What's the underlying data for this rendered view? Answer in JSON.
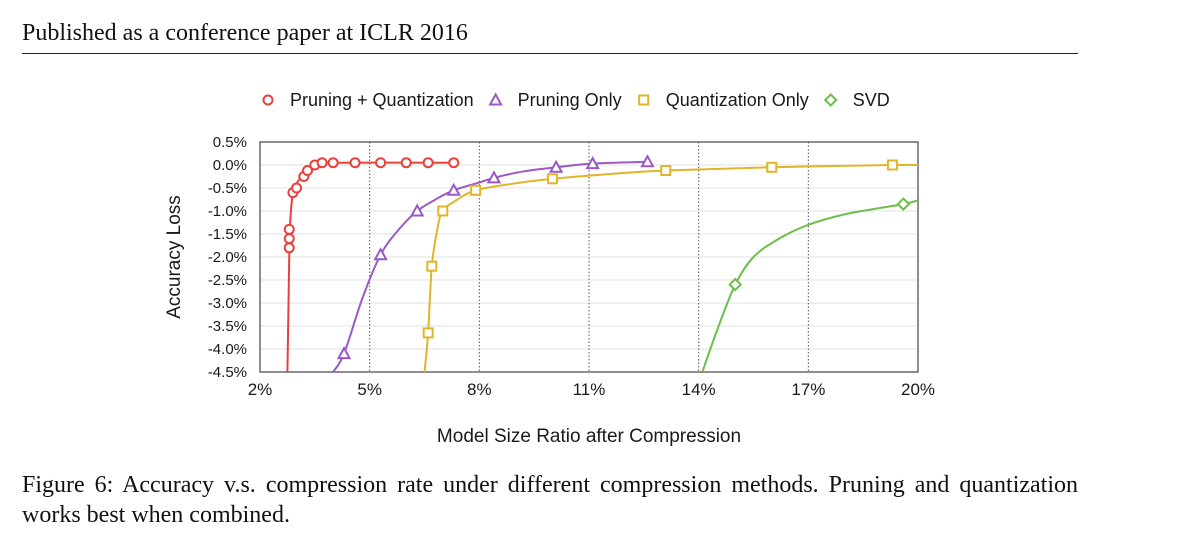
{
  "header": {
    "text": "Published as a conference paper at ICLR 2016"
  },
  "caption": {
    "label": "Figure 6:",
    "text": "Accuracy v.s. compression rate under different compression methods. Pruning and quantization works best when combined."
  },
  "colors": {
    "pruning_quantization": "#e8413c",
    "pruning_only": "#9b59c4",
    "quantization_only": "#e0b52a",
    "svd": "#6cbf4a"
  },
  "chart_data": {
    "type": "line",
    "title": "",
    "xlabel": "Model Size Ratio after Compression",
    "ylabel": "Accuracy Loss",
    "xlim": [
      2,
      20
    ],
    "ylim": [
      -4.5,
      0.5
    ],
    "xticks": [
      "2%",
      "5%",
      "8%",
      "11%",
      "14%",
      "17%",
      "20%"
    ],
    "yticks": [
      "0.5%",
      "0.0%",
      "-0.5%",
      "-1.0%",
      "-1.5%",
      "-2.0%",
      "-2.5%",
      "-3.0%",
      "-3.5%",
      "-4.0%",
      "-4.5%"
    ],
    "legend_position": "top",
    "series": [
      {
        "name": "Pruning + Quantization",
        "marker": "circle",
        "color": "#e8413c",
        "points": [
          [
            2.8,
            -1.8
          ],
          [
            2.8,
            -1.6
          ],
          [
            2.8,
            -1.4
          ],
          [
            2.9,
            -0.6
          ],
          [
            3.0,
            -0.5
          ],
          [
            3.2,
            -0.25
          ],
          [
            3.3,
            -0.12
          ],
          [
            3.5,
            0.0
          ],
          [
            3.7,
            0.05
          ],
          [
            4.0,
            0.05
          ],
          [
            4.6,
            0.05
          ],
          [
            5.3,
            0.05
          ],
          [
            6.0,
            0.05
          ],
          [
            6.6,
            0.05
          ],
          [
            7.3,
            0.05
          ]
        ],
        "curve": [
          [
            2.75,
            -4.5
          ],
          [
            2.78,
            -3.0
          ],
          [
            2.8,
            -2.0
          ],
          [
            2.83,
            -1.2
          ],
          [
            2.9,
            -0.6
          ],
          [
            3.0,
            -0.4
          ],
          [
            3.2,
            -0.2
          ],
          [
            3.5,
            -0.02
          ],
          [
            3.8,
            0.04
          ],
          [
            4.3,
            0.05
          ],
          [
            7.3,
            0.05
          ]
        ]
      },
      {
        "name": "Pruning Only",
        "marker": "triangle",
        "color": "#9b59c4",
        "points": [
          [
            4.3,
            -4.1
          ],
          [
            5.3,
            -1.95
          ],
          [
            6.3,
            -1.0
          ],
          [
            7.3,
            -0.55
          ],
          [
            8.4,
            -0.28
          ],
          [
            10.1,
            -0.05
          ],
          [
            11.1,
            0.03
          ],
          [
            12.6,
            0.07
          ]
        ],
        "curve": [
          [
            4.0,
            -4.5
          ],
          [
            4.3,
            -4.1
          ],
          [
            4.8,
            -2.9
          ],
          [
            5.3,
            -1.95
          ],
          [
            5.8,
            -1.4
          ],
          [
            6.3,
            -1.0
          ],
          [
            6.8,
            -0.75
          ],
          [
            7.3,
            -0.55
          ],
          [
            8.0,
            -0.38
          ],
          [
            8.4,
            -0.28
          ],
          [
            9.2,
            -0.14
          ],
          [
            10.1,
            -0.05
          ],
          [
            11.1,
            0.03
          ],
          [
            12.6,
            0.07
          ]
        ]
      },
      {
        "name": "Quantization Only",
        "marker": "square",
        "color": "#e0b52a",
        "points": [
          [
            6.6,
            -3.65
          ],
          [
            6.7,
            -2.2
          ],
          [
            7.0,
            -1.0
          ],
          [
            7.9,
            -0.55
          ],
          [
            10.0,
            -0.3
          ],
          [
            13.1,
            -0.12
          ],
          [
            16.0,
            -0.05
          ],
          [
            19.3,
            0.0
          ]
        ],
        "curve": [
          [
            6.5,
            -4.5
          ],
          [
            6.6,
            -3.65
          ],
          [
            6.7,
            -2.2
          ],
          [
            6.85,
            -1.4
          ],
          [
            7.0,
            -1.0
          ],
          [
            7.4,
            -0.75
          ],
          [
            7.9,
            -0.55
          ],
          [
            8.8,
            -0.42
          ],
          [
            10.0,
            -0.3
          ],
          [
            11.5,
            -0.2
          ],
          [
            13.1,
            -0.12
          ],
          [
            16.0,
            -0.05
          ],
          [
            19.3,
            0.0
          ],
          [
            20.0,
            0.0
          ]
        ]
      },
      {
        "name": "SVD",
        "marker": "diamond",
        "color": "#6cbf4a",
        "points": [
          [
            15.0,
            -2.6
          ],
          [
            19.6,
            -0.85
          ]
        ],
        "curve": [
          [
            14.1,
            -4.5
          ],
          [
            14.5,
            -3.6
          ],
          [
            15.0,
            -2.6
          ],
          [
            15.5,
            -2.0
          ],
          [
            16.2,
            -1.6
          ],
          [
            17.0,
            -1.3
          ],
          [
            18.0,
            -1.07
          ],
          [
            19.0,
            -0.93
          ],
          [
            19.6,
            -0.85
          ],
          [
            20.0,
            -0.77
          ]
        ]
      }
    ]
  }
}
